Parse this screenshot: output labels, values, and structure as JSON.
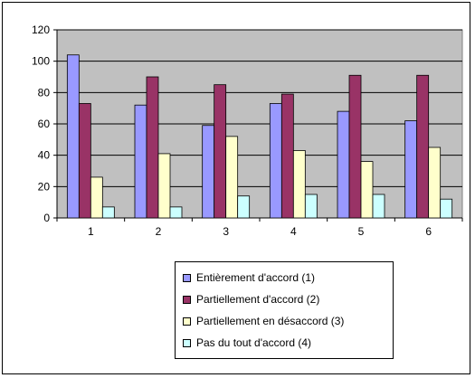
{
  "chart_data": {
    "type": "bar",
    "categories": [
      "1",
      "2",
      "3",
      "4",
      "5",
      "6"
    ],
    "series": [
      {
        "name": "Entièrement d'accord (1)",
        "color": "#9999FF",
        "values": [
          104,
          72,
          59,
          73,
          68,
          62
        ]
      },
      {
        "name": "Partiellement d'accord (2)",
        "color": "#993366",
        "values": [
          73,
          90,
          85,
          79,
          91,
          91
        ]
      },
      {
        "name": "Partiellement en désaccord (3)",
        "color": "#FFFFCC",
        "values": [
          26,
          41,
          52,
          43,
          36,
          45
        ]
      },
      {
        "name": "Pas du tout d'accord (4)",
        "color": "#CCFFFF",
        "values": [
          7,
          7,
          14,
          15,
          15,
          12
        ]
      }
    ],
    "title": "",
    "xlabel": "",
    "ylabel": "",
    "ylim": [
      0,
      120
    ],
    "yticks": [
      0,
      20,
      40,
      60,
      80,
      100,
      120
    ],
    "grid": true,
    "plot_background": "#C0C0C0",
    "legend_position": "bottom"
  }
}
